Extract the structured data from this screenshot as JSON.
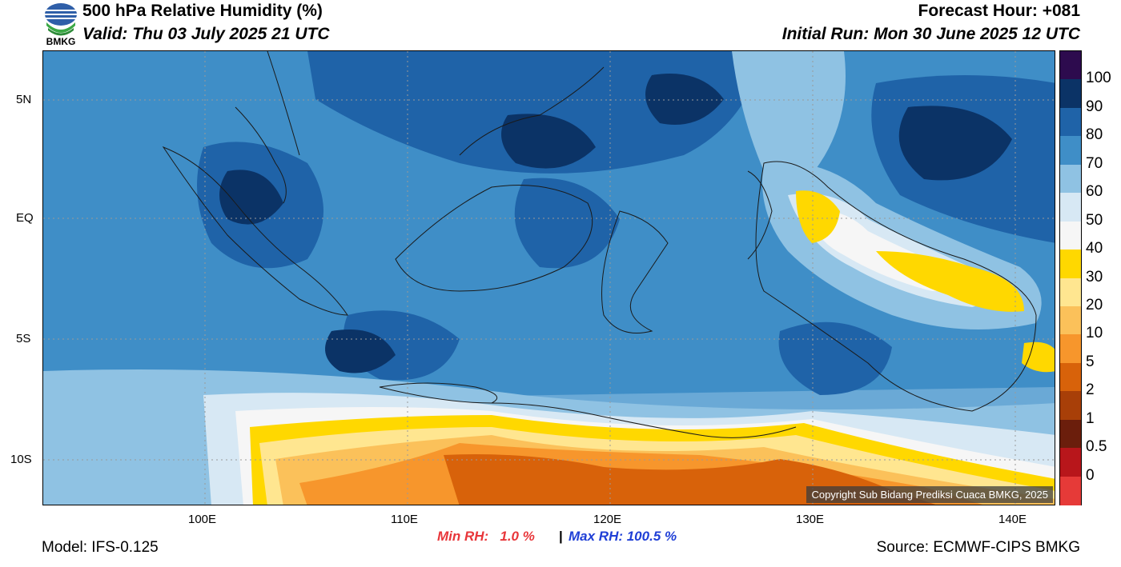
{
  "header": {
    "title": "500 hPa Relative Humidity (%)",
    "valid": "Valid: Thu 03 July 2025 21 UTC",
    "forecast_hour": "Forecast Hour: +081",
    "initial_run": "Initial Run: Mon 30 June 2025 12 UTC",
    "logo_text": "BMKG"
  },
  "map": {
    "lat_labels": [
      "5N",
      "EQ",
      "5S",
      "10S"
    ],
    "lon_labels": [
      "100E",
      "110E",
      "120E",
      "130E",
      "140E"
    ],
    "copyright": "Copyright Sub Bidang Prediksi Cuaca BMKG, 2025"
  },
  "colorbar": {
    "labels": [
      "100",
      "90",
      "80",
      "70",
      "60",
      "50",
      "40",
      "30",
      "20",
      "10",
      "5",
      "2",
      "1",
      "0.5",
      "0"
    ],
    "colors": [
      "#2d0b4e",
      "#0b3366",
      "#1f63a8",
      "#3f8ec7",
      "#8fc2e3",
      "#d7e8f4",
      "#f6f6f6",
      "#ffd800",
      "#ffe690",
      "#fbc15a",
      "#f7962c",
      "#d8620a",
      "#a83f08",
      "#6b1e0c",
      "#b8161b",
      "#e63a38"
    ]
  },
  "footer": {
    "model": "Model: IFS-0.125",
    "min_rh": "Min RH:   1.0 %",
    "separator": "|",
    "max_rh": "Max RH: 100.5 %",
    "source": "Source: ECMWF-CIPS BMKG"
  }
}
